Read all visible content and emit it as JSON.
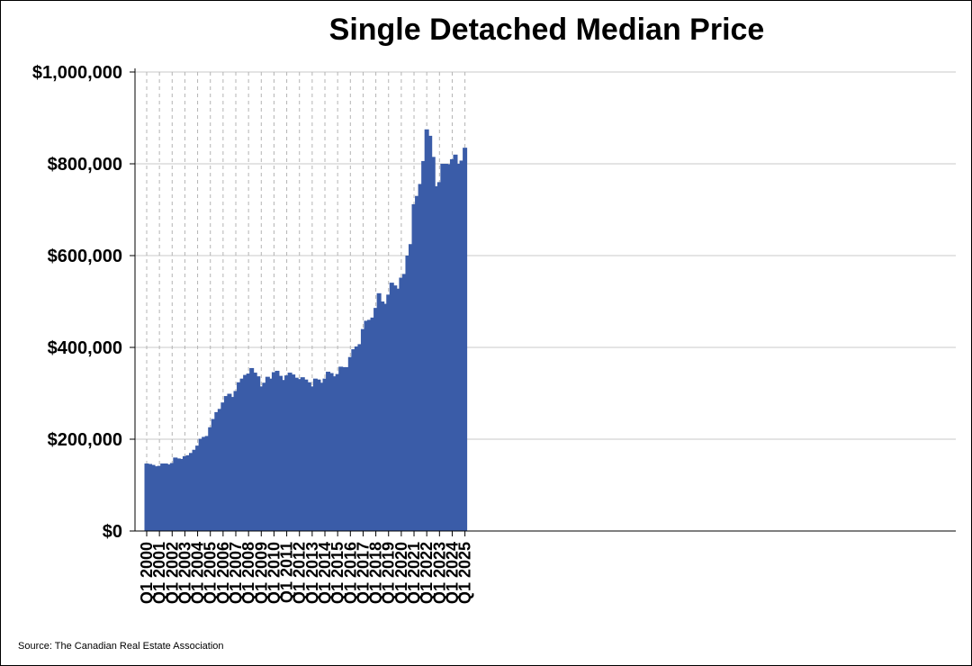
{
  "chart_data": {
    "type": "bar",
    "title": "Single Detached Median Price",
    "source": "Source: The Canadian Real Estate Association",
    "xlabel": "",
    "ylabel": "",
    "ylim": [
      0,
      1000000
    ],
    "ytick_labels": [
      "$0",
      "$200,000",
      "$400,000",
      "$600,000",
      "$800,000",
      "$1,000,000"
    ],
    "ytick_values": [
      0,
      200000,
      400000,
      600000,
      800000,
      1000000
    ],
    "xtick_labels": [
      "Q1 2000",
      "Q1 2001",
      "Q1 2002",
      "Q1 2003",
      "Q1 2004",
      "Q1 2005",
      "Q1 2006",
      "Q1 2007",
      "Q1 2008",
      "Q1 2009",
      "Q1 2010",
      "Q1 2011",
      "Q1 2012",
      "Q1 2013",
      "Q1 2014",
      "Q1 2015",
      "Q1 2016",
      "Q1 2017",
      "Q1 2018",
      "Q1 2019",
      "Q1 2020",
      "Q1 2021",
      "Q1 2022",
      "Q1 2023",
      "Q1 2024",
      "Q1 2025"
    ],
    "grid": true,
    "bar_color": "#3a5ca8",
    "series": [
      {
        "values": [
          147000,
          146000,
          144000,
          141000,
          142000,
          147000,
          147000,
          145000,
          148000,
          160000,
          158000,
          157000,
          163000,
          165000,
          170000,
          177000,
          186000,
          201000,
          205000,
          207000,
          226000,
          244000,
          259000,
          266000,
          280000,
          294000,
          299000,
          292000,
          305000,
          324000,
          332000,
          340000,
          343000,
          355000,
          345000,
          337000,
          315000,
          323000,
          336000,
          332000,
          346000,
          349000,
          338000,
          329000,
          339000,
          345000,
          341000,
          334000,
          331000,
          335000,
          330000,
          324000,
          315000,
          332000,
          330000,
          323000,
          332000,
          347000,
          344000,
          337000,
          342000,
          358000,
          357000,
          357000,
          379000,
          396000,
          402000,
          407000,
          440000,
          458000,
          460000,
          465000,
          486000,
          518000,
          500000,
          495000,
          515000,
          541000,
          535000,
          528000,
          552000,
          560000,
          600000,
          625000,
          712000,
          730000,
          756000,
          806000,
          875000,
          861000,
          815000,
          751000,
          760000,
          800000,
          800000,
          799000,
          810000,
          820000,
          800000,
          807000,
          835000
        ]
      }
    ]
  }
}
